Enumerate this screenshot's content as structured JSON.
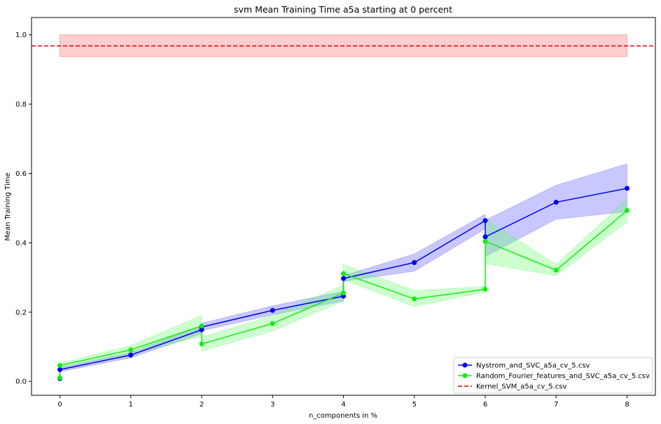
{
  "chart_data": {
    "type": "line",
    "title": "svm Mean Training Time a5a starting at 0 percent",
    "xlabel": "n_components in %",
    "ylabel": "Mean Training Time",
    "xlim": [
      -0.4,
      8.4
    ],
    "ylim": [
      -0.04,
      1.05
    ],
    "xticks": [
      0,
      1,
      2,
      3,
      4,
      5,
      6,
      7,
      8
    ],
    "xtick_labels": [
      "0",
      "1",
      "2",
      "3",
      "4",
      "5",
      "6",
      "7",
      "8"
    ],
    "yticks": [
      0.0,
      0.2,
      0.4,
      0.6,
      0.8,
      1.0
    ],
    "ytick_labels": [
      "0.0",
      "0.2",
      "0.4",
      "0.6",
      "0.8",
      "1.0"
    ],
    "grid": false,
    "legend_position": "lower-right",
    "series": [
      {
        "name": "Nystrom_and_SVC_a5a_cv_5.csv",
        "color": "#0000ee",
        "band_color": "#5555ff",
        "marker": "circle",
        "x": [
          0,
          0,
          1,
          2,
          2,
          3,
          4,
          4,
          5,
          6,
          6,
          7,
          8
        ],
        "y": [
          0.008,
          0.034,
          0.076,
          0.149,
          0.157,
          0.205,
          0.246,
          0.297,
          0.343,
          0.464,
          0.417,
          0.517,
          0.557
        ],
        "lower": [
          0.005,
          0.028,
          0.068,
          0.138,
          0.146,
          0.192,
          0.232,
          0.289,
          0.318,
          0.44,
          0.36,
          0.468,
          0.49
        ],
        "upper": [
          0.011,
          0.04,
          0.084,
          0.16,
          0.168,
          0.218,
          0.26,
          0.305,
          0.368,
          0.482,
          0.465,
          0.566,
          0.628
        ]
      },
      {
        "name": "Random_Fourier_features_and_SVC_a5a_cv_5.csv",
        "color": "#11ee11",
        "band_color": "#66ff66",
        "marker": "circle",
        "x": [
          0,
          0,
          1,
          2,
          2,
          3,
          4,
          4,
          5,
          6,
          6,
          7,
          8
        ],
        "y": [
          0.01,
          0.046,
          0.091,
          0.16,
          0.108,
          0.167,
          0.255,
          0.311,
          0.238,
          0.266,
          0.404,
          0.321,
          0.493
        ],
        "lower": [
          0.006,
          0.04,
          0.078,
          0.13,
          0.088,
          0.145,
          0.232,
          0.293,
          0.216,
          0.258,
          0.34,
          0.305,
          0.46
        ],
        "upper": [
          0.014,
          0.052,
          0.104,
          0.19,
          0.128,
          0.19,
          0.278,
          0.338,
          0.262,
          0.274,
          0.468,
          0.338,
          0.526
        ]
      },
      {
        "name": "Kernel_SVM_a5a_cv_5.csv",
        "color": "#dd0000",
        "band_color": "#ff6666",
        "style": "dashed",
        "x": [
          0,
          8
        ],
        "y": [
          0.968,
          0.968
        ],
        "lower": [
          0.937,
          0.937
        ],
        "upper": [
          1.0,
          1.0
        ],
        "line_span": [
          -0.4,
          8.4
        ]
      }
    ]
  }
}
